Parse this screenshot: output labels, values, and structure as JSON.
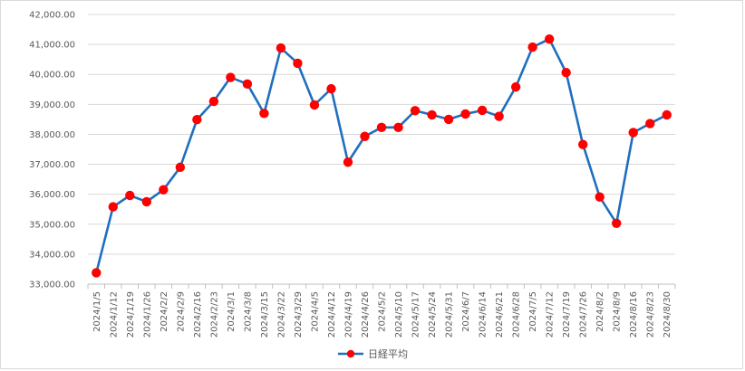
{
  "chart_data": {
    "type": "line",
    "x": [
      "2024/1/5",
      "2024/1/12",
      "2024/1/19",
      "2024/1/26",
      "2024/2/2",
      "2024/2/9",
      "2024/2/16",
      "2024/2/23",
      "2024/3/1",
      "2024/3/8",
      "2024/3/15",
      "2024/3/22",
      "2024/3/29",
      "2024/4/5",
      "2024/4/12",
      "2024/4/19",
      "2024/4/26",
      "2024/5/2",
      "2024/5/10",
      "2024/5/17",
      "2024/5/24",
      "2024/5/31",
      "2024/6/7",
      "2024/6/14",
      "2024/6/21",
      "2024/6/28",
      "2024/7/5",
      "2024/7/12",
      "2024/7/19",
      "2024/7/26",
      "2024/8/2",
      "2024/8/9",
      "2024/8/16",
      "2024/8/23",
      "2024/8/30"
    ],
    "series": [
      {
        "name": "日経平均",
        "values": [
          33380,
          35580,
          35960,
          35750,
          36150,
          36900,
          38490,
          39100,
          39900,
          39680,
          38700,
          40880,
          40370,
          38980,
          39520,
          37070,
          37930,
          38230,
          38230,
          38790,
          38650,
          38500,
          38680,
          38800,
          38600,
          39580,
          40910,
          41180,
          40060,
          37660,
          35910,
          35030,
          38060,
          38360,
          38650
        ]
      }
    ],
    "ylim": [
      33000,
      42000
    ],
    "yticks": [
      "33,000.00",
      "34,000.00",
      "35,000.00",
      "36,000.00",
      "37,000.00",
      "38,000.00",
      "39,000.00",
      "40,000.00",
      "41,000.00",
      "42,000.00"
    ],
    "grid": "horizontal",
    "legend": "bottom",
    "colors": {
      "line": "#1f6fbf",
      "marker": "#ff0000",
      "grid": "#d9d9d9",
      "axis": "#bfbfbf",
      "text": "#595959"
    }
  }
}
